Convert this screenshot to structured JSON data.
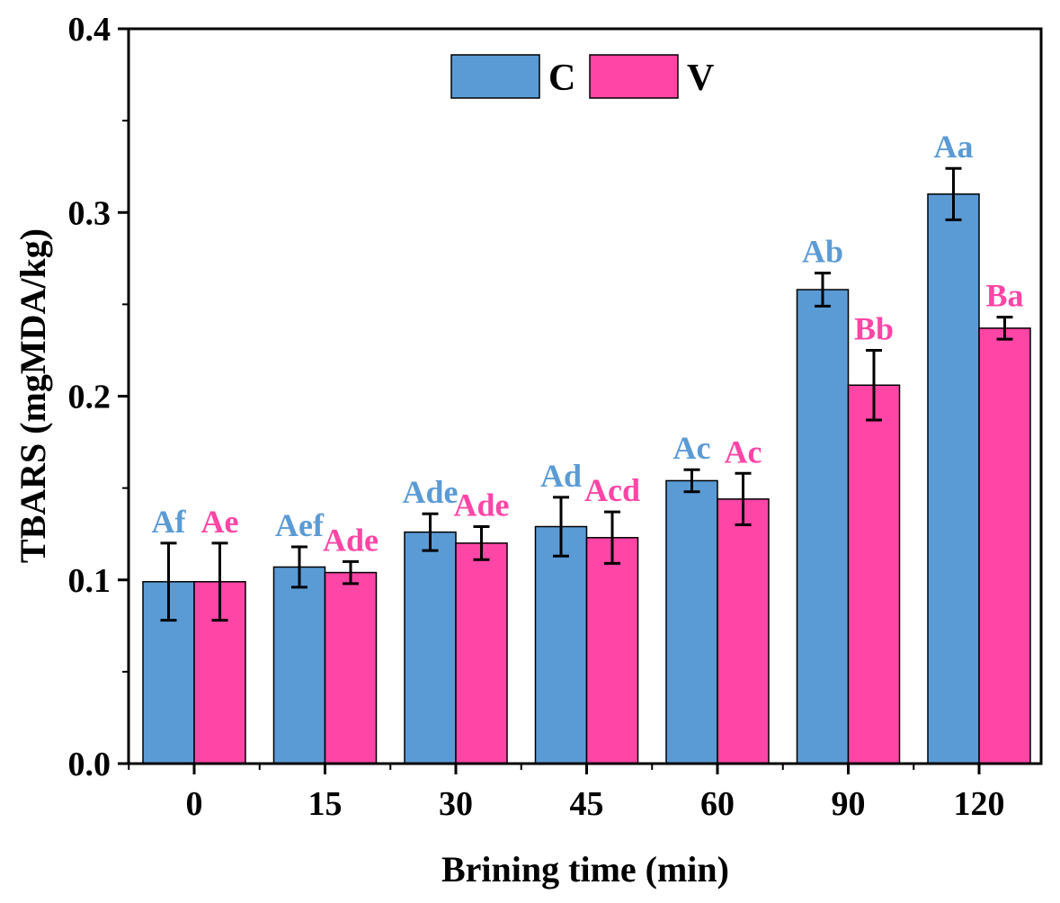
{
  "chart_data": {
    "type": "bar",
    "xlabel": "Brining time (min)",
    "ylabel": "TBARS (mgMDA/kg)",
    "ylim": [
      0,
      0.4
    ],
    "yticks": [
      0.0,
      0.1,
      0.2,
      0.3,
      0.4
    ],
    "ytick_labels": [
      "0.0",
      "0.1",
      "0.2",
      "0.3",
      "0.4"
    ],
    "categories": [
      "0",
      "15",
      "30",
      "45",
      "60",
      "90",
      "120"
    ],
    "legend_position": "top-center",
    "grid": false,
    "series": [
      {
        "name": "C",
        "color": "#5B9BD5",
        "values": [
          0.099,
          0.107,
          0.126,
          0.129,
          0.154,
          0.258,
          0.31
        ],
        "errors": [
          0.021,
          0.011,
          0.01,
          0.016,
          0.006,
          0.009,
          0.014
        ],
        "labels": [
          "Af",
          "Aef",
          "Ade",
          "Ad",
          "Ac",
          "Ab",
          "Aa"
        ]
      },
      {
        "name": "V",
        "color": "#FF45A6",
        "values": [
          0.099,
          0.104,
          0.12,
          0.123,
          0.144,
          0.206,
          0.237
        ],
        "errors": [
          0.021,
          0.006,
          0.009,
          0.014,
          0.014,
          0.019,
          0.006
        ],
        "labels": [
          "Ae",
          "Ade",
          "Ade",
          "Acd",
          "Ac",
          "Bb",
          "Ba"
        ]
      }
    ]
  }
}
